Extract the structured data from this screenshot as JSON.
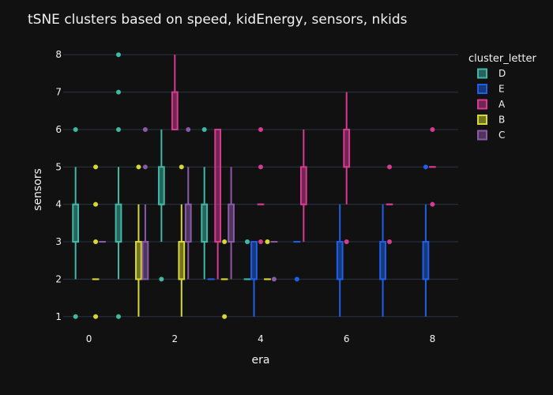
{
  "chart_data": {
    "type": "box",
    "title": "tSNE clusters based on speed, kidEnergy, sensors, nkids",
    "xlabel": "era",
    "ylabel": "sensors",
    "xlim": [
      -0.6,
      8.6
    ],
    "ylim": [
      0.7,
      8.3
    ],
    "x_ticks": [
      0,
      2,
      4,
      6,
      8
    ],
    "y_ticks": [
      1,
      2,
      3,
      4,
      5,
      6,
      7,
      8
    ],
    "legend_title": "cluster_letter",
    "legend_position": "right",
    "grid": "horizontal",
    "series": [
      {
        "name": "D",
        "color": "#3fb8a5",
        "boxes": [
          {
            "x": 0,
            "min": 2,
            "q1": 3,
            "median": 3,
            "q3": 4,
            "max": 5,
            "outliers": [
              1,
              6
            ]
          },
          {
            "x": 1,
            "min": 2,
            "q1": 3,
            "median": 3,
            "q3": 4,
            "max": 5,
            "outliers": [
              1,
              6,
              7,
              8
            ]
          },
          {
            "x": 2,
            "min": 3,
            "q1": 4,
            "median": 4,
            "q3": 5,
            "max": 6,
            "outliers": [
              2
            ]
          },
          {
            "x": 3,
            "min": 2,
            "q1": 3,
            "median": 3,
            "q3": 4,
            "max": 5,
            "outliers": [
              6
            ]
          },
          {
            "x": 4,
            "min": 2,
            "q1": 2,
            "median": 2,
            "q3": 2,
            "max": 2,
            "outliers": [
              3
            ]
          }
        ]
      },
      {
        "name": "E",
        "color": "#1f5fe8",
        "boxes": [
          {
            "x": 3,
            "min": 2,
            "q1": 2,
            "median": 2,
            "q3": 2,
            "max": 2,
            "outliers": []
          },
          {
            "x": 4,
            "min": 1,
            "q1": 2,
            "median": 2,
            "q3": 3,
            "max": 3,
            "outliers": []
          },
          {
            "x": 5,
            "min": 3,
            "q1": 3,
            "median": 3,
            "q3": 3,
            "max": 3,
            "outliers": [
              2
            ]
          },
          {
            "x": 6,
            "min": 1,
            "q1": 2,
            "median": 2,
            "q3": 3,
            "max": 4,
            "outliers": []
          },
          {
            "x": 7,
            "min": 1,
            "q1": 2,
            "median": 2,
            "q3": 3,
            "max": 4,
            "outliers": []
          },
          {
            "x": 8,
            "min": 1,
            "q1": 2,
            "median": 2,
            "q3": 3,
            "max": 4,
            "outliers": [
              5
            ]
          }
        ]
      },
      {
        "name": "A",
        "color": "#d63a92",
        "boxes": [
          {
            "x": 2,
            "min": 6,
            "q1": 6,
            "median": 6,
            "q3": 7,
            "max": 8,
            "outliers": []
          },
          {
            "x": 3,
            "min": 2,
            "q1": 3,
            "median": 3,
            "q3": 6,
            "max": 6,
            "outliers": []
          },
          {
            "x": 4,
            "min": 4,
            "q1": 4,
            "median": 4,
            "q3": 4,
            "max": 4,
            "outliers": [
              3,
              5,
              6
            ]
          },
          {
            "x": 5,
            "min": 3,
            "q1": 4,
            "median": 4,
            "q3": 5,
            "max": 6,
            "outliers": []
          },
          {
            "x": 6,
            "min": 4,
            "q1": 5,
            "median": 5,
            "q3": 6,
            "max": 7,
            "outliers": [
              3
            ]
          },
          {
            "x": 7,
            "min": 4,
            "q1": 4,
            "median": 4,
            "q3": 4,
            "max": 4,
            "outliers": [
              3,
              5
            ]
          },
          {
            "x": 8,
            "min": 5,
            "q1": 5,
            "median": 5,
            "q3": 5,
            "max": 5,
            "outliers": [
              4,
              6
            ]
          }
        ]
      },
      {
        "name": "B",
        "color": "#d7d932",
        "boxes": [
          {
            "x": 0,
            "min": 2,
            "q1": 2,
            "median": 2,
            "q3": 2,
            "max": 2,
            "outliers": [
              1,
              3,
              4,
              5
            ]
          },
          {
            "x": 1,
            "min": 1,
            "q1": 2,
            "median": 3,
            "q3": 3,
            "max": 4,
            "outliers": [
              5
            ]
          },
          {
            "x": 2,
            "min": 1,
            "q1": 2,
            "median": 3,
            "q3": 3,
            "max": 4,
            "outliers": [
              5
            ]
          },
          {
            "x": 3,
            "min": 2,
            "q1": 2,
            "median": 2,
            "q3": 2,
            "max": 2,
            "outliers": [
              1,
              3
            ]
          },
          {
            "x": 4,
            "min": 2,
            "q1": 2,
            "median": 2,
            "q3": 2,
            "max": 2,
            "outliers": [
              3
            ]
          }
        ]
      },
      {
        "name": "C",
        "color": "#8a5aa8",
        "boxes": [
          {
            "x": 0,
            "min": 3,
            "q1": 3,
            "median": 3,
            "q3": 3,
            "max": 3,
            "outliers": []
          },
          {
            "x": 1,
            "min": 2,
            "q1": 2,
            "median": 3,
            "q3": 3,
            "max": 4,
            "outliers": [
              5,
              6
            ]
          },
          {
            "x": 2,
            "min": 2,
            "q1": 3,
            "median": 4,
            "q3": 4,
            "max": 5,
            "outliers": [
              6
            ]
          },
          {
            "x": 3,
            "min": 2,
            "q1": 3,
            "median": 3,
            "q3": 4,
            "max": 5,
            "outliers": []
          },
          {
            "x": 4,
            "min": 3,
            "q1": 3,
            "median": 3,
            "q3": 3,
            "max": 3,
            "outliers": [
              2
            ]
          }
        ]
      }
    ]
  }
}
